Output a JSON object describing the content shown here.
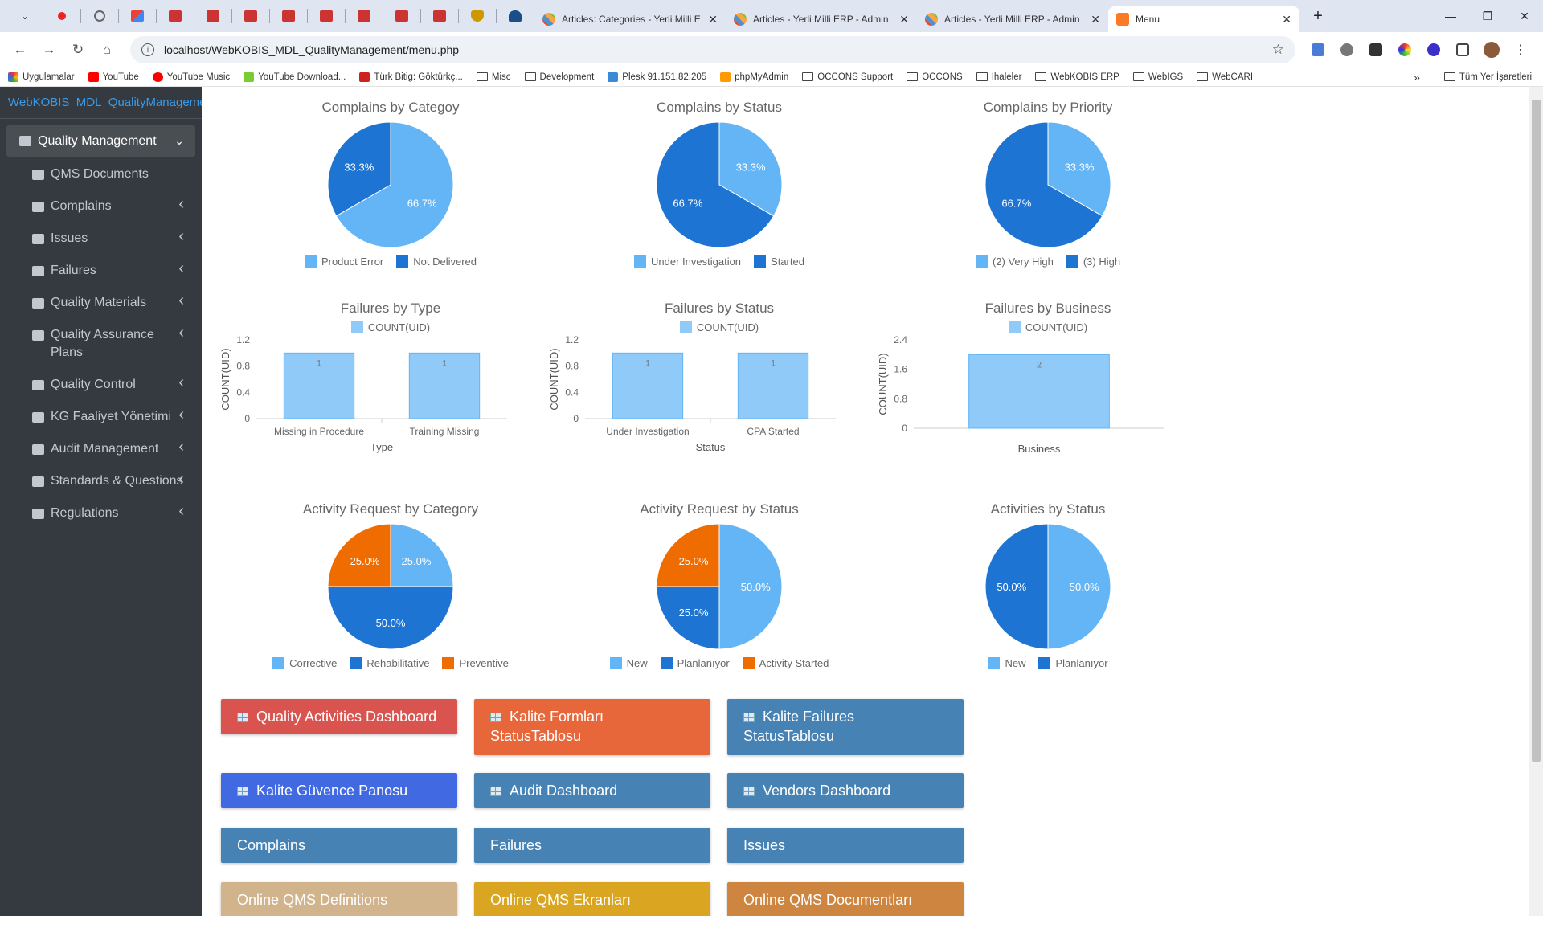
{
  "browser": {
    "tabs": [
      {
        "title": "Articles: Categories - Yerli Milli E"
      },
      {
        "title": "Articles - Yerli Milli ERP - Admin"
      },
      {
        "title": "Articles - Yerli Milli ERP - Admin"
      },
      {
        "title": "Menu"
      }
    ],
    "new_tab": "+",
    "url": "localhost/WebKOBIS_MDL_QualityManagement/menu.php",
    "bookmarks": [
      "Uygulamalar",
      "YouTube",
      "YouTube Music",
      "YouTube Download...",
      "Türk Bitig: Göktürkç...",
      "Misc",
      "Development",
      "Plesk 91.151.82.205",
      "phpMyAdmin",
      "OCCONS Support",
      "OCCONS",
      "Ihaleler",
      "WebKOBIS ERP",
      "WebIGS",
      "WebCARI"
    ],
    "bookmarks_more": "»",
    "all_bookmarks": "Tüm Yer İşaretleri"
  },
  "sidebar": {
    "brand": "WebKOBIS_MDL_QualityManagemen",
    "main_item": "Quality Management",
    "items": [
      {
        "label": "QMS Documents",
        "has_arrow": false
      },
      {
        "label": "Complains",
        "has_arrow": true
      },
      {
        "label": "Issues",
        "has_arrow": true
      },
      {
        "label": "Failures",
        "has_arrow": true
      },
      {
        "label": "Quality Materials",
        "has_arrow": true
      },
      {
        "label": "Quality Assurance Plans",
        "has_arrow": true
      },
      {
        "label": "Quality Control",
        "has_arrow": true
      },
      {
        "label": "KG Faaliyet Yönetimi",
        "has_arrow": true
      },
      {
        "label": "Audit Management",
        "has_arrow": true
      },
      {
        "label": "Standards & Questions",
        "has_arrow": true
      },
      {
        "label": "Regulations",
        "has_arrow": true
      }
    ]
  },
  "colors": {
    "light_blue": "#64b5f6",
    "dark_blue": "#1e74d2",
    "orange": "#ef6c00",
    "bar_fill": "#90caf9",
    "bar_stroke": "#64b5f6"
  },
  "chart_data": [
    {
      "type": "pie",
      "title": "Complains by Categoy",
      "labels": [
        "Product Error",
        "Not Delivered"
      ],
      "values": [
        66.7,
        33.3
      ],
      "legend": [
        "Product Error",
        "Not Delivered"
      ]
    },
    {
      "type": "pie",
      "title": "Complains by Status",
      "labels": [
        "Under Investigation",
        "Started"
      ],
      "values": [
        33.3,
        66.7
      ],
      "legend": [
        "Under Investigation",
        "Started"
      ]
    },
    {
      "type": "pie",
      "title": "Complains by Priority",
      "labels": [
        "(2) Very High",
        "(3) High"
      ],
      "values": [
        33.3,
        66.7
      ],
      "legend": [
        "(2) Very High",
        "(3) High"
      ]
    },
    {
      "type": "bar",
      "title": "Failures by Type",
      "legend": [
        "COUNT(UID)"
      ],
      "categories": [
        "Missing in Procedure",
        "Training Missing"
      ],
      "values": [
        1,
        1
      ],
      "xlabel": "Type",
      "ylabel": "COUNT(UID)",
      "yticks": [
        "0",
        "0.4",
        "0.8",
        "1.2"
      ],
      "ylim": [
        0,
        1.2
      ]
    },
    {
      "type": "bar",
      "title": "Failures by Status",
      "legend": [
        "COUNT(UID)"
      ],
      "categories": [
        "Under Investigation",
        "CPA Started"
      ],
      "values": [
        1,
        1
      ],
      "xlabel": "Status",
      "ylabel": "COUNT(UID)",
      "yticks": [
        "0",
        "0.4",
        "0.8",
        "1.2"
      ],
      "ylim": [
        0,
        1.2
      ]
    },
    {
      "type": "bar",
      "title": "Failures by Business",
      "legend": [
        "COUNT(UID)"
      ],
      "categories": [
        ""
      ],
      "values": [
        2
      ],
      "xlabel": "Business",
      "ylabel": "COUNT(UID)",
      "yticks": [
        "0",
        "0.8",
        "1.6",
        "2.4"
      ],
      "ylim": [
        0,
        2.4
      ]
    },
    {
      "type": "pie",
      "title": "Activity Request by Category",
      "labels": [
        "Corrective",
        "Rehabilitative",
        "Preventive"
      ],
      "values": [
        25.0,
        50.0,
        25.0
      ],
      "legend": [
        "Corrective",
        "Rehabilitative",
        "Preventive"
      ]
    },
    {
      "type": "pie",
      "title": "Activity Request by Status",
      "labels": [
        "New",
        "Planlanıyor",
        "Activity Started"
      ],
      "values": [
        50.0,
        25.0,
        25.0
      ],
      "legend": [
        "New",
        "Planlanıyor",
        "Activity Started"
      ]
    },
    {
      "type": "pie",
      "title": "Activities by Status",
      "labels": [
        "New",
        "Planlanıyor"
      ],
      "values": [
        50.0,
        50.0
      ],
      "legend": [
        "New",
        "Planlanıyor"
      ]
    }
  ],
  "buttons": [
    {
      "label": "Quality Activities Dashboard",
      "icon": "grid-icon",
      "color": "#d9534f"
    },
    {
      "label": "Kalite Formları StatusTablosu",
      "icon": "grid-icon",
      "color": "#e8673a"
    },
    {
      "label": "Kalite Failures StatusTablosu",
      "icon": "grid-icon",
      "color": "#4682b4"
    },
    {
      "label": "Kalite Güvence Panosu",
      "icon": "grid-icon",
      "color": "#4169e1"
    },
    {
      "label": "Audit Dashboard",
      "icon": "grid-icon",
      "color": "#4682b4"
    },
    {
      "label": "Vendors Dashboard",
      "icon": "grid-icon",
      "color": "#4682b4"
    },
    {
      "label": "Complains",
      "icon": "",
      "color": "#4682b4"
    },
    {
      "label": "Failures",
      "icon": "",
      "color": "#4682b4"
    },
    {
      "label": "Issues",
      "icon": "",
      "color": "#4682b4"
    },
    {
      "label": "Online QMS Definitions",
      "icon": "",
      "color": "#d2b48c"
    },
    {
      "label": "Online QMS Ekranları",
      "icon": "",
      "color": "#daa520"
    },
    {
      "label": "Online QMS Documentları",
      "icon": "",
      "color": "#cd853f"
    }
  ]
}
